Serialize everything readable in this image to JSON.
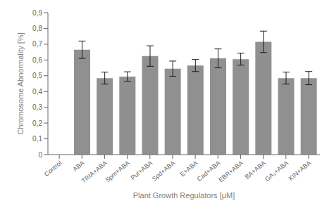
{
  "chart_data": {
    "type": "bar",
    "categories": [
      "Control",
      "ABA",
      "TRIA+ABA",
      "Spm+ABA",
      "Put+ABA",
      "Spd+ABA",
      "E+ABA",
      "Cad+ABA",
      "EBR+ABA",
      "BA+ABA",
      "GA₃+ABA",
      "KIN+ABA"
    ],
    "values": [
      0.0,
      0.665,
      0.485,
      0.495,
      0.625,
      0.545,
      0.565,
      0.61,
      0.605,
      0.715,
      0.485,
      0.485
    ],
    "errors": [
      0.0,
      0.055,
      0.038,
      0.03,
      0.065,
      0.048,
      0.038,
      0.06,
      0.038,
      0.068,
      0.038,
      0.042
    ],
    "color": "#909090",
    "xlabel": "Plant Growth Regulators [μM]",
    "ylabel": "Chromosome Abnormality [%]",
    "ylim": [
      0,
      0.9
    ],
    "yticks": [
      0,
      {
        "value": 0.1,
        "label": "0,1"
      },
      {
        "value": 0.2,
        "label": "0,2"
      },
      {
        "value": 0.3,
        "label": "0,3"
      },
      {
        "value": 0.4,
        "label": "0,4"
      },
      {
        "value": 0.5,
        "label": "0,5"
      },
      {
        "value": 0.6,
        "label": "0,6"
      },
      {
        "value": 0.7,
        "label": "0,7"
      },
      {
        "value": 0.8,
        "label": "0,8"
      },
      {
        "value": 0.9,
        "label": "0,9"
      }
    ],
    "grid": false
  }
}
